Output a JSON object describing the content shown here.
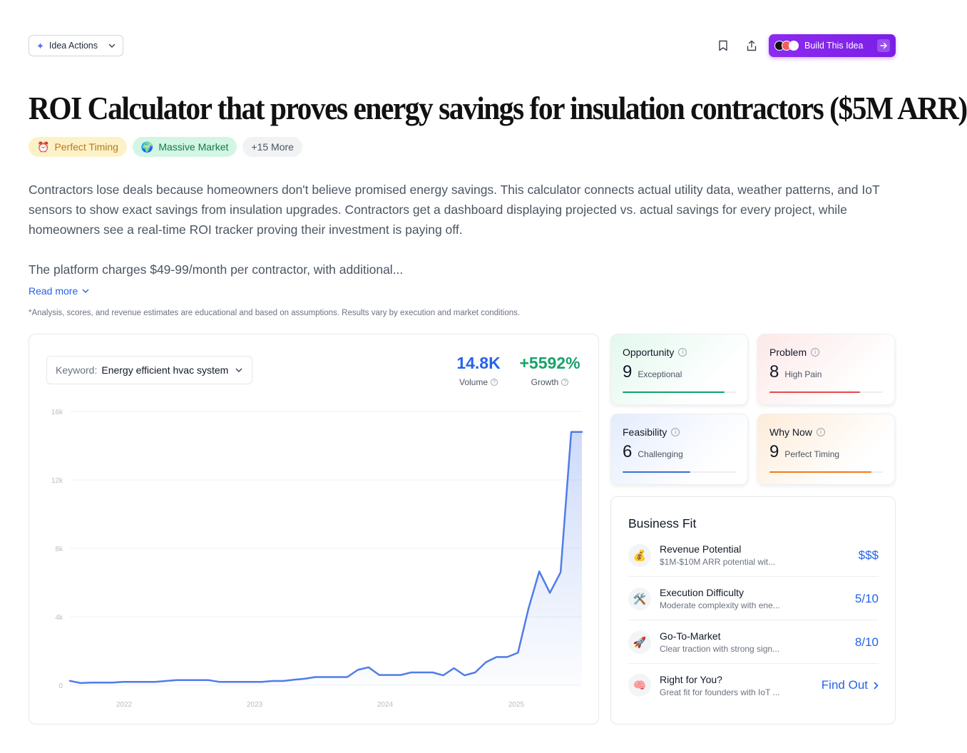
{
  "topbar": {
    "idea_actions_label": "Idea Actions",
    "build_label": "Build This Idea"
  },
  "title": "ROI Calculator that proves energy savings for insulation contractors ($5M ARR)",
  "tags": [
    {
      "icon": "⏰",
      "label": "Perfect Timing"
    },
    {
      "icon": "🌍",
      "label": "Massive Market"
    },
    {
      "label": "+15 More"
    }
  ],
  "description": [
    "Contractors lose deals because homeowners don't believe promised energy savings. This calculator connects actual utility data, weather patterns, and IoT sensors to show exact savings from insulation upgrades. Contractors get a dashboard displaying projected vs. actual savings for every project, while homeowners see a real-time ROI tracker proving their investment is paying off.",
    "The platform charges $49-99/month per contractor, with additional..."
  ],
  "read_more": "Read more",
  "disclaimer": "*Analysis, scores, and revenue estimates are educational and based on assumptions. Results vary by execution and market conditions.",
  "keyword": {
    "label": "Keyword:",
    "value": "Energy efficient hvac system"
  },
  "metrics": {
    "volume": {
      "value": "14.8K",
      "label": "Volume",
      "color": "#2563eb"
    },
    "growth": {
      "value": "+5592%",
      "label": "Growth",
      "color": "#16a36a"
    }
  },
  "chart_data": {
    "type": "area",
    "y_ticks": [
      "16k",
      "12k",
      "8k",
      "4k",
      "0"
    ],
    "ylim": [
      0,
      16000
    ],
    "x_ticks": [
      "2022",
      "2023",
      "2024",
      "2025"
    ],
    "values": [
      260,
      130,
      160,
      160,
      160,
      200,
      200,
      200,
      200,
      250,
      300,
      300,
      300,
      300,
      200,
      200,
      200,
      200,
      200,
      250,
      250,
      320,
      380,
      480,
      480,
      480,
      480,
      900,
      1050,
      600,
      600,
      600,
      750,
      750,
      750,
      580,
      1000,
      580,
      750,
      1350,
      1650,
      1650,
      1900,
      4500,
      6650,
      5400,
      6600,
      14800,
      14800
    ],
    "color": "#4f7de8"
  },
  "scores": [
    {
      "title": "Opportunity",
      "value": "9",
      "sub": "Exceptional",
      "fill": 0.9,
      "color": "#10a36b",
      "bg": "linear-gradient(135deg, #e3f8ee 0%, #ffffff 75%)"
    },
    {
      "title": "Problem",
      "value": "8",
      "sub": "High Pain",
      "fill": 0.8,
      "color": "#e5484d",
      "bg": "linear-gradient(135deg, #fde8e8 0%, #ffffff 75%)"
    },
    {
      "title": "Feasibility",
      "value": "6",
      "sub": "Challenging",
      "fill": 0.6,
      "color": "#3b6fd8",
      "bg": "linear-gradient(135deg, #e4ecfc 0%, #ffffff 75%)"
    },
    {
      "title": "Why Now",
      "value": "9",
      "sub": "Perfect Timing",
      "fill": 0.9,
      "color": "#f07a1a",
      "bg": "linear-gradient(135deg, #fdecd9 0%, #ffffff 75%)"
    }
  ],
  "business_fit": {
    "title": "Business Fit",
    "rows": [
      {
        "icon": "💰",
        "name": "Revenue Potential",
        "desc": "$1M-$10M ARR potential wit...",
        "value": "$$$"
      },
      {
        "icon": "🛠️",
        "name": "Execution Difficulty",
        "desc": "Moderate complexity with ene...",
        "value": "5/10"
      },
      {
        "icon": "🚀",
        "name": "Go-To-Market",
        "desc": "Clear traction with strong sign...",
        "value": "8/10"
      },
      {
        "icon": "🧠",
        "name": "Right for You?",
        "desc": "Great fit for founders with IoT ...",
        "value": "Find Out"
      }
    ]
  }
}
